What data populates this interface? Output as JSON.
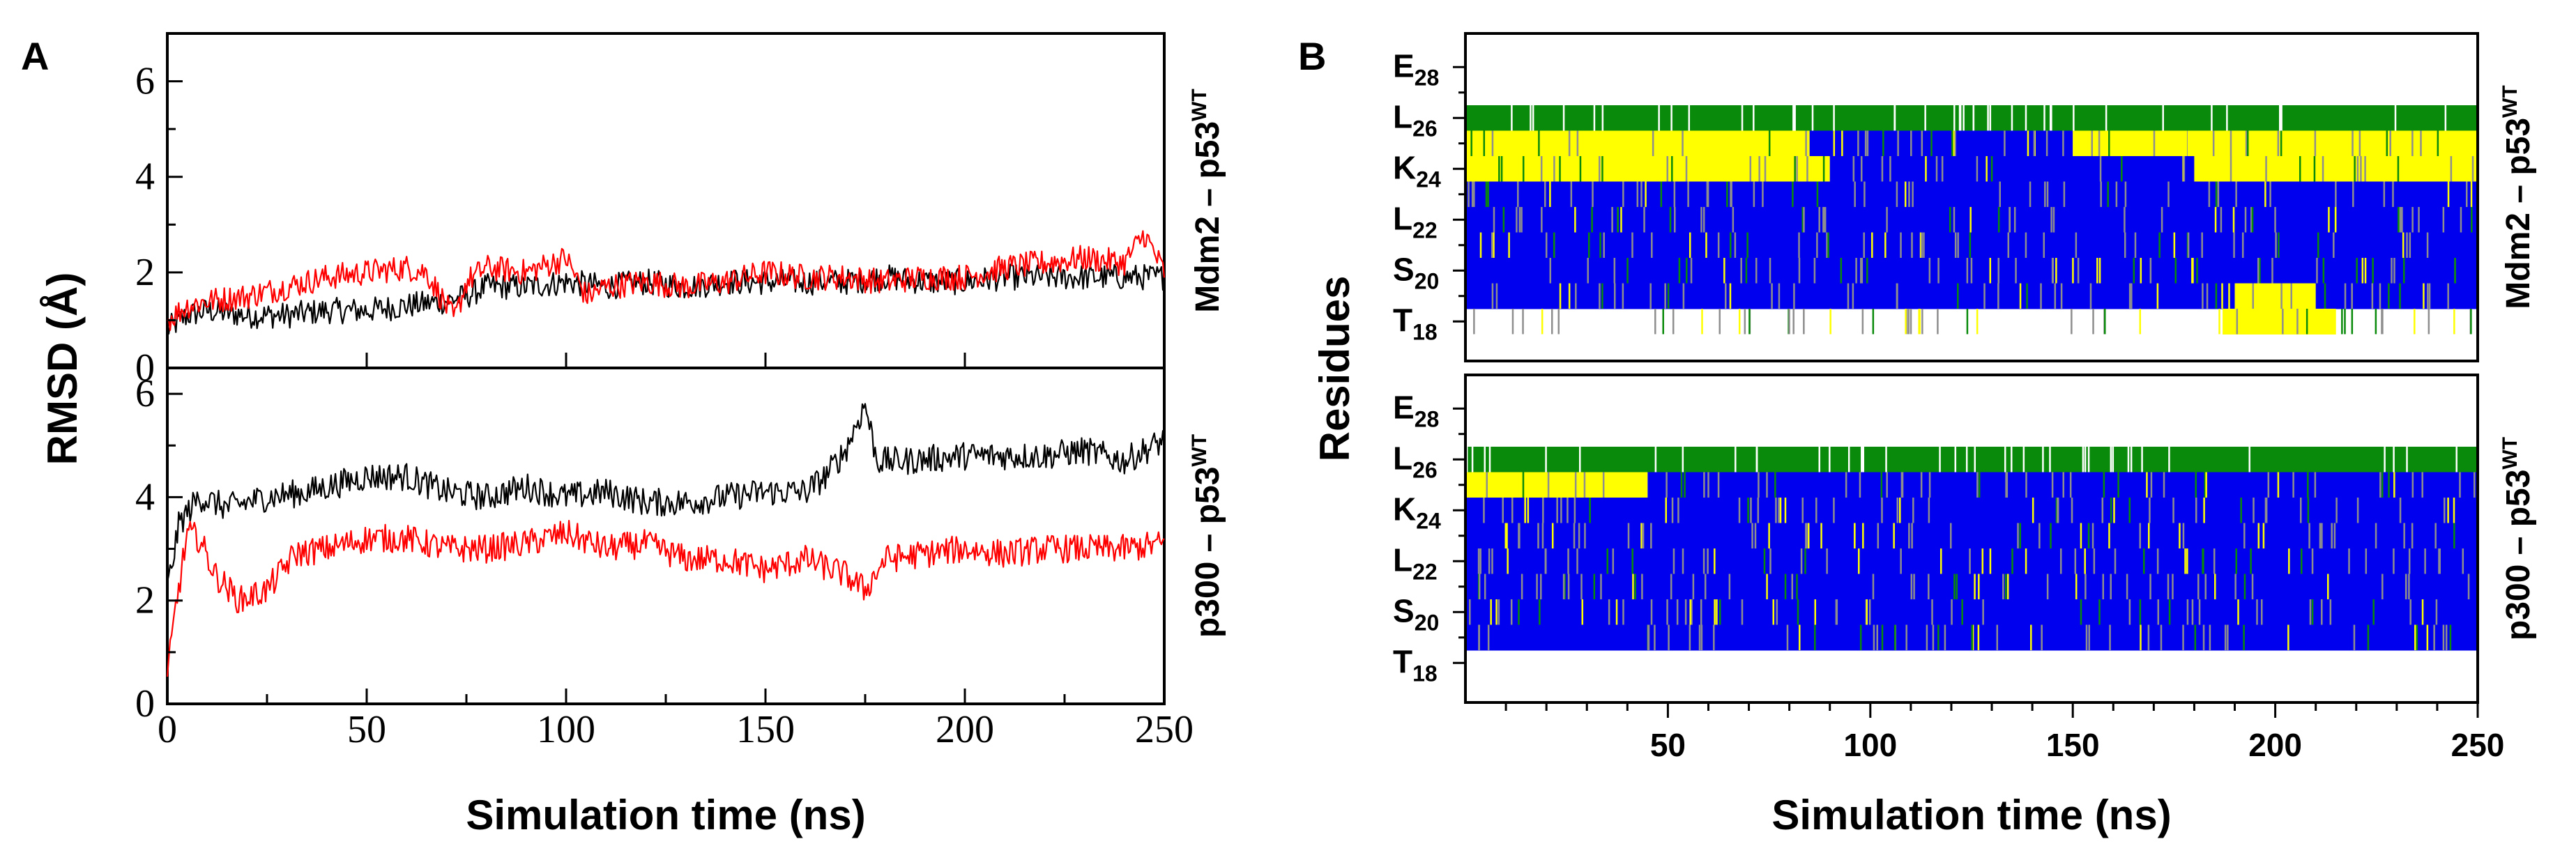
{
  "panels": {
    "a": {
      "label": "A"
    },
    "b": {
      "label": "B"
    }
  },
  "chart_data": [
    {
      "type": "line",
      "panel": "A",
      "title": "",
      "xlabel": "Simulation time (ns)",
      "ylabel": "RMSD (Å)",
      "xlim": [
        0,
        250
      ],
      "xticks": [
        "0",
        "50",
        "100",
        "150",
        "200",
        "250"
      ],
      "subplots": [
        {
          "label_main": "Mdm2 – p53",
          "label_sup": "WT",
          "ylim": [
            0,
            7
          ],
          "yticks": [
            "0",
            "2",
            "4",
            "6"
          ],
          "series": [
            {
              "name": "black trace",
              "color": "#000000",
              "x": [
                0,
                5,
                10,
                20,
                30,
                40,
                50,
                60,
                70,
                75,
                80,
                90,
                100,
                110,
                120,
                130,
                140,
                150,
                160,
                170,
                180,
                190,
                200,
                210,
                220,
                230,
                240,
                250
              ],
              "y": [
                0.8,
                1.1,
                1.2,
                1.1,
                1.1,
                1.2,
                1.2,
                1.3,
                1.4,
                1.5,
                1.7,
                1.7,
                1.8,
                1.7,
                1.8,
                1.7,
                1.8,
                1.8,
                1.8,
                1.8,
                1.9,
                1.8,
                1.8,
                1.9,
                1.9,
                1.9,
                1.9,
                1.9
              ]
            },
            {
              "name": "red trace",
              "color": "#ff0000",
              "x": [
                0,
                5,
                10,
                20,
                30,
                40,
                50,
                60,
                65,
                72,
                75,
                80,
                90,
                100,
                105,
                110,
                120,
                130,
                140,
                150,
                160,
                170,
                180,
                190,
                200,
                210,
                220,
                230,
                240,
                245,
                250
              ],
              "y": [
                1.0,
                1.3,
                1.4,
                1.5,
                1.7,
                1.9,
                2.0,
                2.1,
                2.0,
                1.0,
                1.8,
                2.1,
                2.0,
                2.3,
                1.5,
                1.7,
                1.8,
                1.7,
                1.8,
                2.0,
                1.9,
                1.9,
                1.8,
                1.9,
                1.9,
                2.1,
                2.2,
                2.3,
                2.2,
                2.8,
                2.0
              ]
            }
          ]
        },
        {
          "label_main": "p300 – p53",
          "label_sup": "WT",
          "ylim": [
            0,
            6.5
          ],
          "yticks": [
            "0",
            "2",
            "4",
            "6"
          ],
          "series": [
            {
              "name": "black trace",
              "color": "#000000",
              "x": [
                0,
                3,
                8,
                15,
                25,
                35,
                50,
                60,
                70,
                80,
                90,
                100,
                110,
                120,
                130,
                140,
                150,
                160,
                165,
                170,
                175,
                178,
                185,
                200,
                210,
                220,
                230,
                240,
                250
              ],
              "y": [
                2.2,
                3.5,
                4.0,
                3.8,
                4.0,
                4.1,
                4.4,
                4.4,
                4.1,
                4.0,
                4.2,
                4.0,
                4.1,
                3.9,
                3.9,
                4.0,
                4.1,
                4.1,
                4.4,
                4.9,
                5.8,
                4.7,
                4.7,
                4.8,
                4.8,
                4.8,
                4.9,
                4.7,
                5.1
              ]
            },
            {
              "name": "red trace",
              "color": "#ff0000",
              "x": [
                0,
                2,
                5,
                8,
                12,
                18,
                25,
                32,
                40,
                50,
                60,
                70,
                80,
                90,
                100,
                110,
                120,
                130,
                140,
                150,
                160,
                170,
                175,
                180,
                190,
                200,
                210,
                220,
                230,
                240,
                250
              ],
              "y": [
                0.5,
                1.8,
                3.3,
                3.2,
                2.5,
                2.0,
                2.2,
                2.9,
                3.0,
                3.2,
                3.2,
                3.0,
                3.0,
                3.1,
                3.3,
                3.0,
                3.1,
                2.8,
                2.8,
                2.6,
                2.8,
                2.5,
                2.2,
                2.8,
                2.9,
                3.0,
                2.9,
                3.0,
                3.0,
                3.0,
                3.1
              ]
            }
          ]
        }
      ]
    },
    {
      "type": "heatmap",
      "panel": "B",
      "title": "",
      "xlabel": "Simulation time (ns)",
      "ylabel": "Residues",
      "xlim": [
        0,
        250
      ],
      "xticks": [
        "50",
        "100",
        "150",
        "200",
        "250"
      ],
      "y_labels": [
        {
          "main": "E",
          "sub": "28"
        },
        {
          "main": "L",
          "sub": "26"
        },
        {
          "main": "K",
          "sub": "24"
        },
        {
          "main": "L",
          "sub": "22"
        },
        {
          "main": "S",
          "sub": "20"
        },
        {
          "main": "T",
          "sub": "18"
        }
      ],
      "legend_colors": {
        "green": "#0a8a0a",
        "yellow": "#ffff00",
        "blue": "#0000ee",
        "gray": "#8e8e8e",
        "white": "#ffffff"
      },
      "subplots": [
        {
          "label_main": "Mdm2 – p53",
          "label_sup": "WT",
          "rows": [
            {
              "residue": 28,
              "segments": [
                {
                  "x0": 0,
                  "x1": 250,
                  "state": "white"
                }
              ]
            },
            {
              "residue": 27,
              "segments": [
                {
                  "x0": 0,
                  "x1": 250,
                  "state": "white"
                }
              ]
            },
            {
              "residue": 26,
              "segments": [
                {
                  "x0": 0,
                  "x1": 250,
                  "state": "green"
                }
              ]
            },
            {
              "residue": 25,
              "segments": [
                {
                  "x0": 0,
                  "x1": 85,
                  "state": "yellow"
                },
                {
                  "x0": 85,
                  "x1": 150,
                  "state": "blue"
                },
                {
                  "x0": 150,
                  "x1": 190,
                  "state": "yellow"
                },
                {
                  "x0": 190,
                  "x1": 250,
                  "state": "yellow"
                }
              ]
            },
            {
              "residue": 24,
              "segments": [
                {
                  "x0": 0,
                  "x1": 90,
                  "state": "yellow"
                },
                {
                  "x0": 90,
                  "x1": 180,
                  "state": "blue"
                },
                {
                  "x0": 180,
                  "x1": 250,
                  "state": "yellow"
                }
              ]
            },
            {
              "residue": 23,
              "segments": [
                {
                  "x0": 0,
                  "x1": 250,
                  "state": "blue"
                }
              ]
            },
            {
              "residue": 22,
              "segments": [
                {
                  "x0": 0,
                  "x1": 250,
                  "state": "blue"
                }
              ]
            },
            {
              "residue": 21,
              "segments": [
                {
                  "x0": 0,
                  "x1": 250,
                  "state": "blue"
                }
              ]
            },
            {
              "residue": 20,
              "segments": [
                {
                  "x0": 0,
                  "x1": 250,
                  "state": "blue"
                }
              ]
            },
            {
              "residue": 19,
              "segments": [
                {
                  "x0": 0,
                  "x1": 190,
                  "state": "blue"
                },
                {
                  "x0": 190,
                  "x1": 210,
                  "state": "yellow"
                },
                {
                  "x0": 210,
                  "x1": 250,
                  "state": "blue"
                }
              ]
            },
            {
              "residue": 18,
              "segments": [
                {
                  "x0": 0,
                  "x1": 187,
                  "state": "white"
                },
                {
                  "x0": 187,
                  "x1": 215,
                  "state": "yellow"
                },
                {
                  "x0": 215,
                  "x1": 250,
                  "state": "white"
                }
              ]
            }
          ]
        },
        {
          "label_main": "p300 – p53",
          "label_sup": "WT",
          "rows": [
            {
              "residue": 28,
              "segments": [
                {
                  "x0": 0,
                  "x1": 250,
                  "state": "white"
                }
              ]
            },
            {
              "residue": 27,
              "segments": [
                {
                  "x0": 0,
                  "x1": 250,
                  "state": "white"
                }
              ]
            },
            {
              "residue": 26,
              "segments": [
                {
                  "x0": 0,
                  "x1": 250,
                  "state": "green"
                }
              ]
            },
            {
              "residue": 25,
              "segments": [
                {
                  "x0": 0,
                  "x1": 45,
                  "state": "yellow"
                },
                {
                  "x0": 45,
                  "x1": 250,
                  "state": "blue"
                }
              ]
            },
            {
              "residue": 24,
              "segments": [
                {
                  "x0": 0,
                  "x1": 250,
                  "state": "blue"
                }
              ]
            },
            {
              "residue": 23,
              "segments": [
                {
                  "x0": 0,
                  "x1": 250,
                  "state": "blue"
                }
              ]
            },
            {
              "residue": 22,
              "segments": [
                {
                  "x0": 0,
                  "x1": 250,
                  "state": "blue"
                }
              ]
            },
            {
              "residue": 21,
              "segments": [
                {
                  "x0": 0,
                  "x1": 250,
                  "state": "blue"
                }
              ]
            },
            {
              "residue": 20,
              "segments": [
                {
                  "x0": 0,
                  "x1": 250,
                  "state": "blue"
                }
              ]
            },
            {
              "residue": 19,
              "segments": [
                {
                  "x0": 0,
                  "x1": 250,
                  "state": "blue"
                }
              ]
            },
            {
              "residue": 18,
              "segments": [
                {
                  "x0": 0,
                  "x1": 250,
                  "state": "white"
                }
              ]
            }
          ]
        }
      ]
    }
  ]
}
